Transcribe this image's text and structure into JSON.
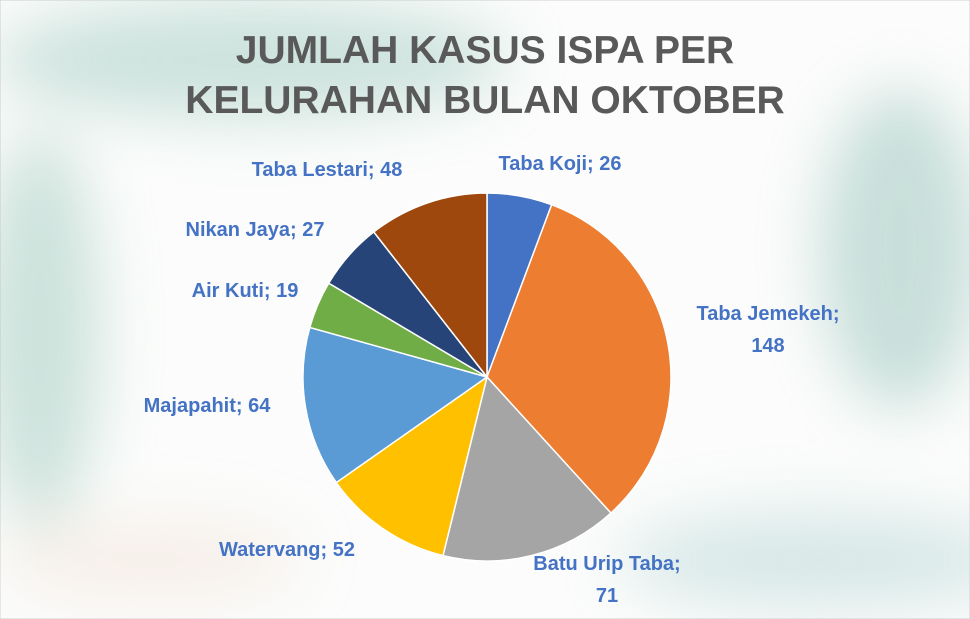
{
  "chart_data": {
    "type": "pie",
    "title": "JUMLAH KASUS ISPA PER KELURAHAN BULAN OKTOBER",
    "categories": [
      "Taba Koji",
      "Taba Jemekeh",
      "Batu Urip Taba",
      "Watervang",
      "Majapahit",
      "Air Kuti",
      "Nikan Jaya",
      "Taba Lestari"
    ],
    "values": [
      26,
      148,
      71,
      52,
      64,
      19,
      27,
      48
    ],
    "value_labels": [
      "Taba Koji; 26",
      "Taba Jemekeh; 148",
      "Batu Urip Taba; 71",
      "Watervang; 52",
      "Majapahit; 64",
      "Air Kuti; 19",
      "Nikan Jaya; 27",
      "Taba Lestari; 48"
    ],
    "colors": [
      "#4472c4",
      "#ed7d31",
      "#a5a5a5",
      "#ffc000",
      "#5b9bd5",
      "#70ad47",
      "#264478",
      "#9e480e"
    ]
  }
}
